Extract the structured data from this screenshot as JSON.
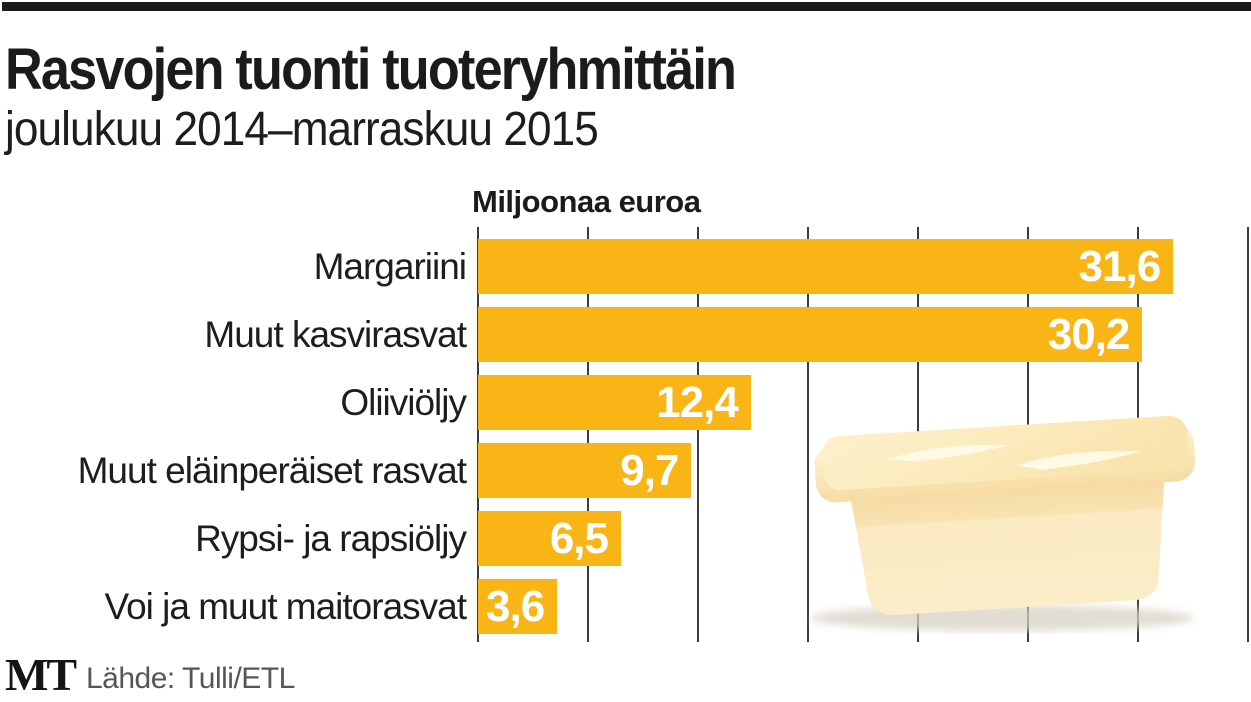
{
  "header": {
    "title": "Rasvojen tuonti tuoteryhmittäin",
    "subtitle": "joulukuu 2014–marraskuu 2015"
  },
  "chart_data": {
    "type": "bar",
    "orientation": "horizontal",
    "title": "Rasvojen tuonti tuoteryhmittäin",
    "subtitle": "joulukuu 2014–marraskuu 2015",
    "axis_title": "Miljoonaa euroa",
    "categories": [
      "Margariini",
      "Muut kasvirasvat",
      "Oliiviöljy",
      "Muut eläinperäiset rasvat",
      "Rypsi- ja rapsiöljy",
      "Voi ja muut maitorasvat"
    ],
    "values": [
      31.6,
      30.2,
      12.4,
      9.7,
      6.5,
      3.6
    ],
    "value_labels": [
      "31,6",
      "30,2",
      "12,4",
      "9,7",
      "6,5",
      "3,6"
    ],
    "xlim": [
      0,
      35
    ],
    "gridline_step": 5,
    "grid": true,
    "legend": false,
    "bar_color": "#F9B516",
    "grid_color": "#3c3c3c",
    "value_label_color": "#FFFFFF"
  },
  "illustration": {
    "name": "margarine-tub",
    "body_color": "#FBEAC0",
    "lid_color": "#FDF3D4",
    "highlight_color": "#FFFBEE",
    "shadow_color": "#D7D2C5"
  },
  "footer": {
    "logo": "MT",
    "source": "Lähde: Tulli/ETL"
  }
}
